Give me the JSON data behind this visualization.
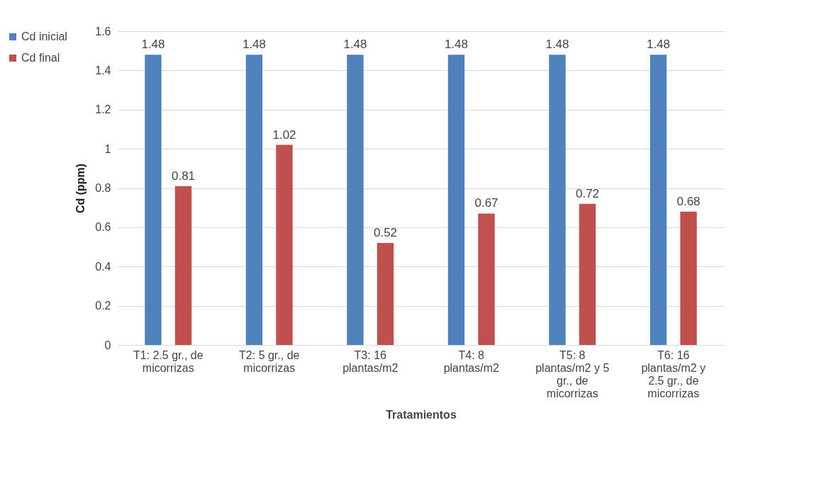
{
  "chart_data": {
    "type": "bar",
    "xlabel": "Tratamientos",
    "ylabel": "Cd (ppm)",
    "categories": [
      "T1: 2.5 gr., de micorrizas",
      "T2: 5 gr.,  de micorrizas",
      "T3: 16 plantas/m2",
      "T4: 8 plantas/m2",
      "T5:  8 plantas/m2 y 5 gr., de micorrizas",
      "T6:  16 plantas/m2 y 2.5 gr., de micorrizas"
    ],
    "series": [
      {
        "name": "Cd inicial",
        "color": "#4f81bd",
        "values": [
          1.48,
          1.48,
          1.48,
          1.48,
          1.48,
          1.48
        ]
      },
      {
        "name": "Cd final",
        "color": "#c0504d",
        "values": [
          0.81,
          1.02,
          0.52,
          0.67,
          0.72,
          0.68
        ]
      }
    ],
    "ylim": [
      0,
      1.6
    ],
    "yticks": [
      0,
      0.2,
      0.4,
      0.6,
      0.8,
      1,
      1.2,
      1.4,
      1.6
    ],
    "grid": "y",
    "legend": "left",
    "data_labels": true
  }
}
